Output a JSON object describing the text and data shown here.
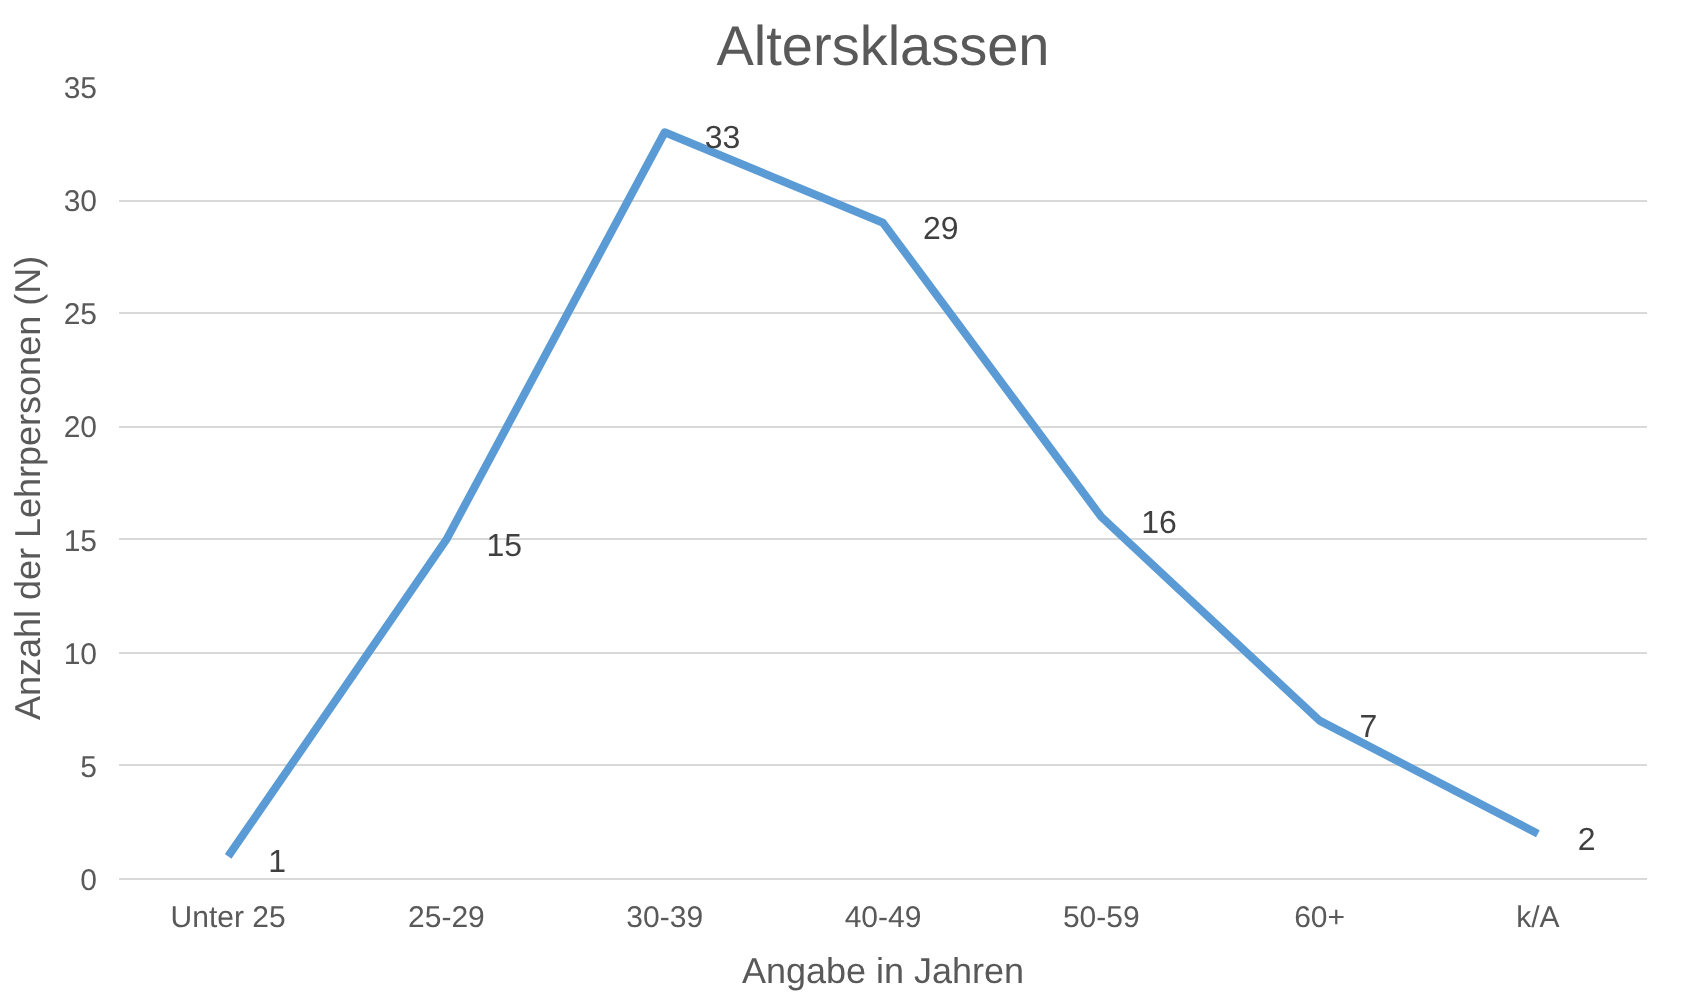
{
  "chart_data": {
    "type": "line",
    "title": "Altersklassen",
    "xlabel": "Angabe in Jahren",
    "ylabel": "Anzahl der Lehrpersonen  (N)",
    "categories": [
      "Unter 25",
      "25-29",
      "30-39",
      "40-49",
      "50-59",
      "60+",
      "k/A"
    ],
    "series": [
      {
        "color": "#5b9bd5",
        "values": [
          1,
          15,
          33,
          29,
          16,
          7,
          2
        ]
      }
    ],
    "ylim": [
      0,
      35
    ],
    "yticks": [
      0,
      5,
      10,
      15,
      20,
      25,
      30,
      35
    ],
    "grid": "y",
    "data_labels": true,
    "marker": "none",
    "line_style": "solid"
  }
}
